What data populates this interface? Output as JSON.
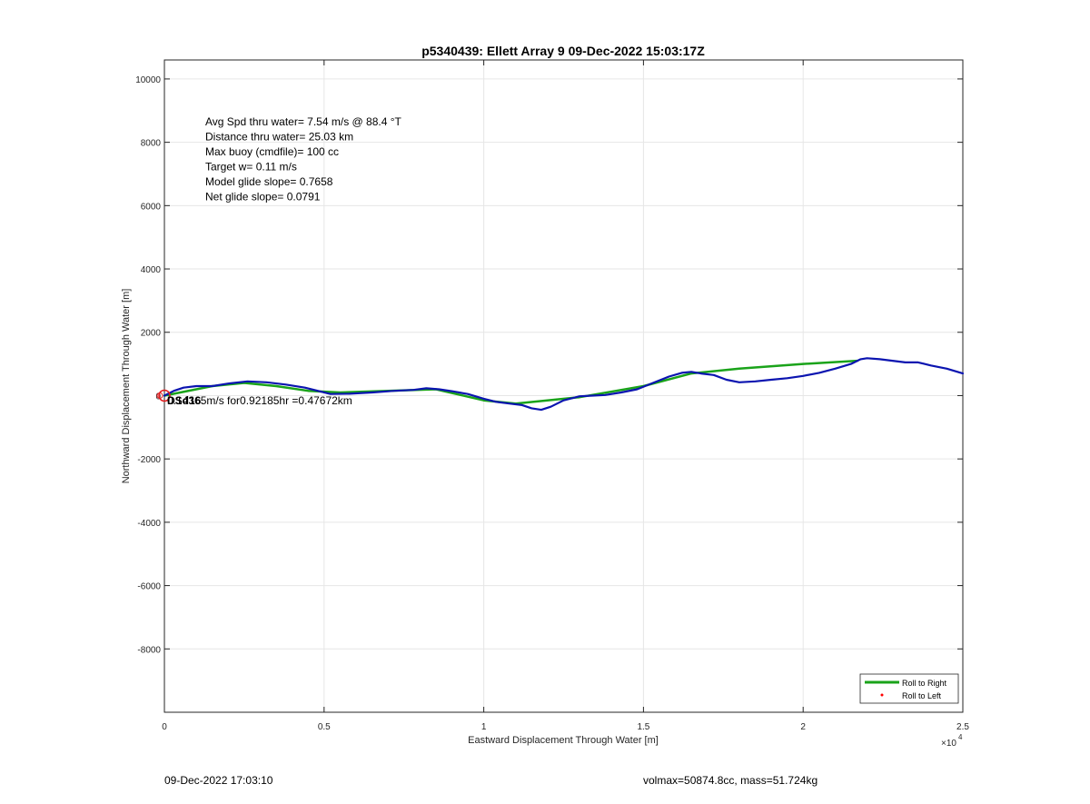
{
  "footer": {
    "timestamp": "09-Dec-2022 17:03:10",
    "mass_info": "volmax=50874.8cc, mass=51.724kg"
  },
  "chart_data": {
    "type": "line",
    "title": "p5340439: Ellett Array 9 09-Dec-2022 15:03:17Z",
    "xlabel": "Eastward Displacement Through Water [m]",
    "ylabel": "Northward Displacement Through Water [m]",
    "x_exponent_label": "×10",
    "x_exponent_power": "4",
    "xlim": [
      0,
      25000
    ],
    "ylim": [
      -10000,
      10600
    ],
    "grid": true,
    "x_ticks": [
      0,
      5000,
      10000,
      15000,
      20000,
      25000
    ],
    "x_tick_labels": [
      "0",
      "0.5",
      "1",
      "1.5",
      "2",
      "2.5"
    ],
    "y_ticks": [
      -8000,
      -6000,
      -4000,
      -2000,
      0,
      2000,
      4000,
      6000,
      8000,
      10000
    ],
    "y_tick_labels": [
      "-8000",
      "-6000",
      "-4000",
      "-2000",
      "0",
      "2000",
      "4000",
      "6000",
      "8000",
      "10000"
    ],
    "annotations": [
      "Avg Spd thru water=  7.54 m/s @  88.4 °T",
      "Distance thru water= 25.03 km",
      "Max buoy (cmdfile)= 100 cc",
      "Target w= 0.11 m/s",
      "Model glide slope= 0.7658",
      "Net glide slope= 0.0791"
    ],
    "point_label": "0.14365m/s for0.92185hr =0.47672km",
    "point_label_overlap": "DSd16",
    "start_marker": {
      "x": 0,
      "y": 0
    },
    "legend": {
      "placement": "bottom-right",
      "entries": [
        {
          "label": "Roll to Right",
          "color": "#1aa31a",
          "style": "line"
        },
        {
          "label": "Roll to Left",
          "color": "#ff0000",
          "style": "dot"
        }
      ]
    },
    "series": [
      {
        "name": "Roll to Right",
        "color": "#1aa31a",
        "x": [
          0,
          1500,
          2500,
          3500,
          4500,
          5500,
          7000,
          8500,
          10000,
          11000,
          13000,
          15000,
          16500,
          18000,
          20000,
          21700
        ],
        "y": [
          0,
          300,
          400,
          300,
          150,
          100,
          150,
          200,
          -150,
          -250,
          -50,
          300,
          700,
          850,
          1000,
          1100
        ]
      },
      {
        "name": "",
        "color": "#0b14b0",
        "x": [
          0,
          300,
          600,
          1000,
          1500,
          2000,
          2600,
          3200,
          3800,
          4400,
          4800,
          5200,
          5800,
          6500,
          7200,
          7800,
          8200,
          8600,
          9000,
          9500,
          10000,
          10400,
          10800,
          11200,
          11500,
          11800,
          12100,
          12500,
          13000,
          13400,
          13800,
          14300,
          14800,
          15300,
          15800,
          16200,
          16500,
          16800,
          17200,
          17600,
          18000,
          18500,
          19000,
          19500,
          20000,
          20500,
          21000,
          21500,
          21800,
          22000,
          22400,
          22800,
          23200,
          23600,
          24000,
          24500,
          25000
        ],
        "y": [
          0,
          150,
          250,
          300,
          300,
          380,
          450,
          420,
          350,
          250,
          150,
          50,
          60,
          100,
          150,
          180,
          230,
          200,
          140,
          50,
          -100,
          -200,
          -250,
          -300,
          -400,
          -450,
          -350,
          -150,
          -20,
          0,
          20,
          100,
          200,
          400,
          600,
          720,
          750,
          700,
          650,
          500,
          420,
          450,
          500,
          550,
          620,
          720,
          850,
          1000,
          1150,
          1180,
          1150,
          1100,
          1050,
          1050,
          950,
          850,
          700
        ]
      }
    ]
  }
}
